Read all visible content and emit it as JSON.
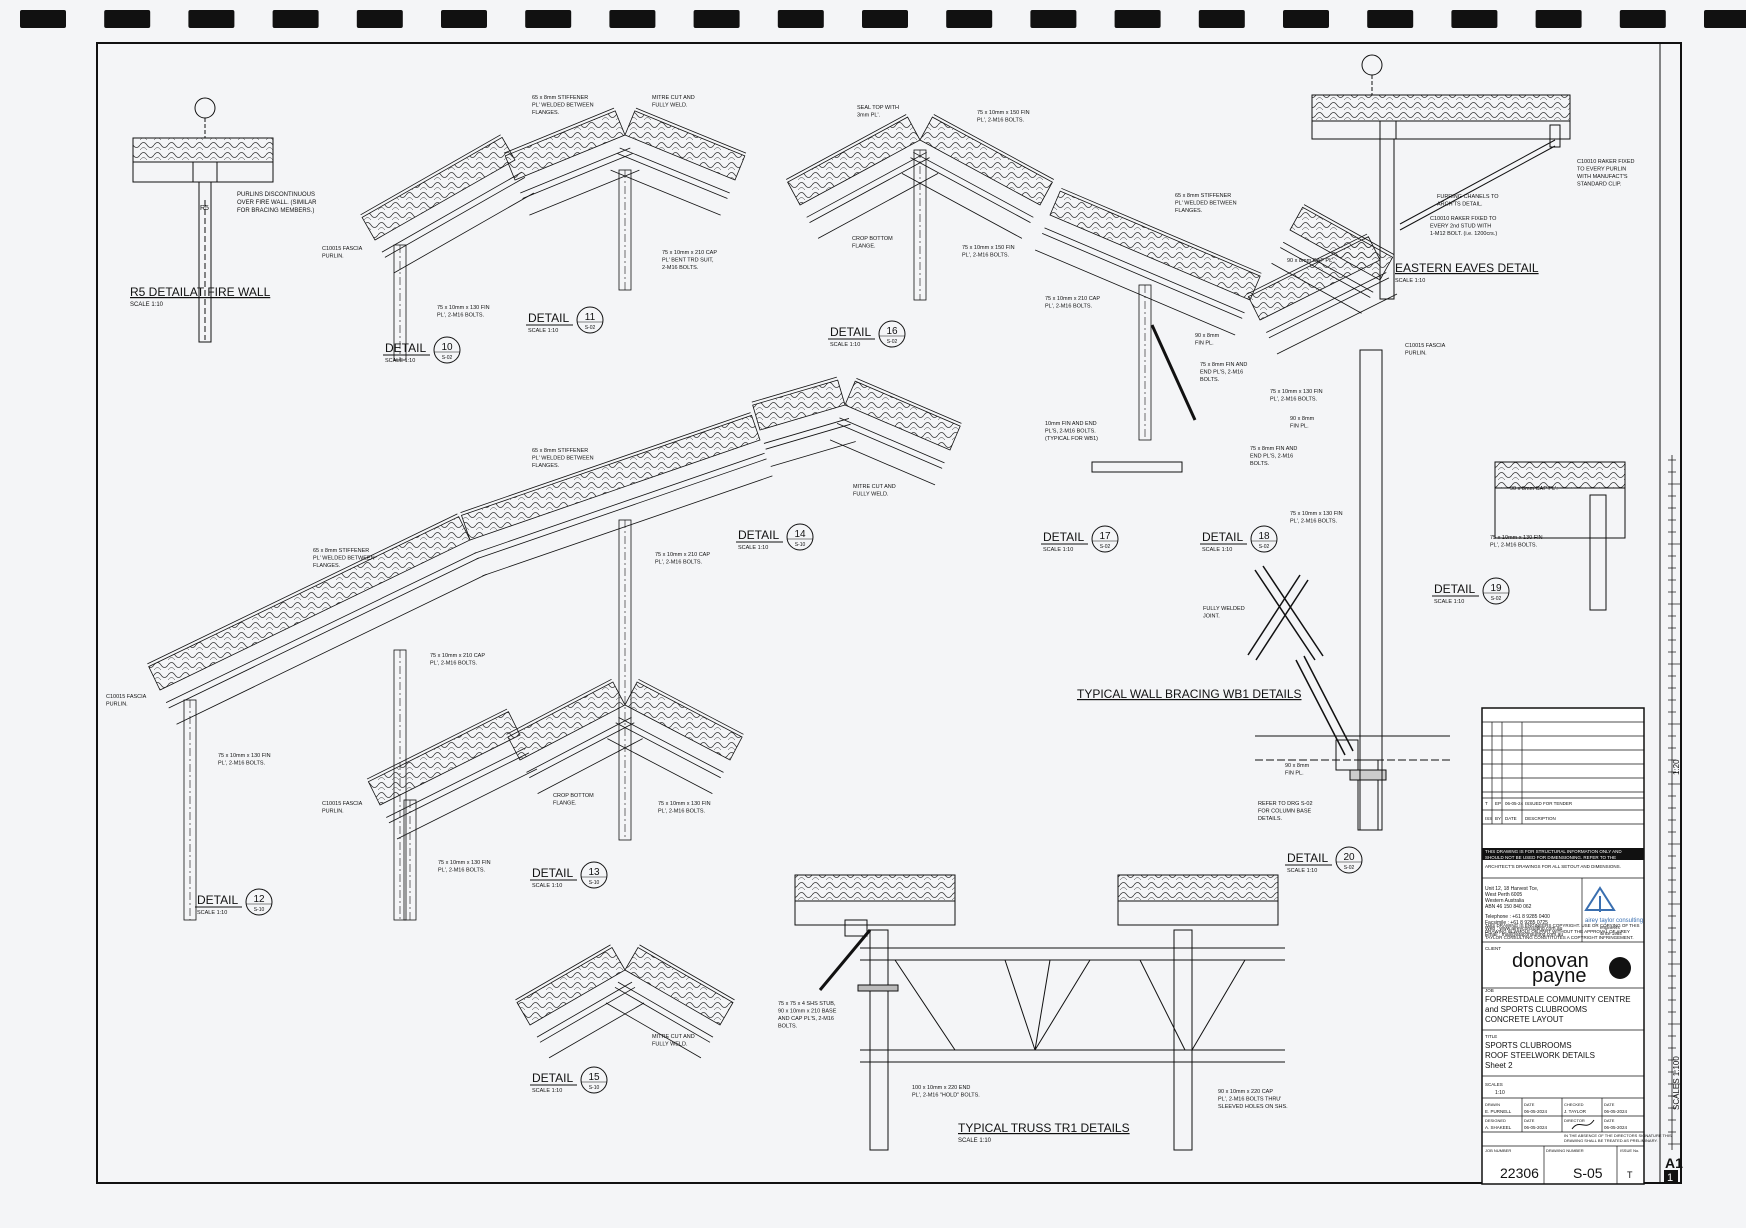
{
  "colors": {
    "paper": "#f4f5f7",
    "ink": "#1a1a1a",
    "logo_blue": "#3a6fb0"
  },
  "details": [
    {
      "title": "R5 DETAILAT FIRE WALL",
      "scale": "SCALE 1:10"
    },
    {
      "title": "DETAIL",
      "num": "10",
      "scale": "SCALE 1:10",
      "ref": "S-02"
    },
    {
      "title": "DETAIL",
      "num": "11",
      "scale": "SCALE 1:10",
      "ref": "S-02"
    },
    {
      "title": "DETAIL",
      "num": "16",
      "scale": "SCALE 1:10",
      "ref": "S-02"
    },
    {
      "title": "EASTERN EAVES DETAIL",
      "scale": "SCALE 1:10"
    },
    {
      "title": "DETAIL",
      "num": "14",
      "scale": "SCALE 1:10",
      "ref": "S-10"
    },
    {
      "title": "DETAIL",
      "num": "17",
      "scale": "SCALE 1:10",
      "ref": "S-02"
    },
    {
      "title": "DETAIL",
      "num": "18",
      "scale": "SCALE 1:10",
      "ref": "S-02"
    },
    {
      "title": "DETAIL",
      "num": "19",
      "scale": "SCALE 1:10",
      "ref": "S-02"
    },
    {
      "title": "TYPICAL WALL BRACING WB1 DETAILS",
      "scale": ""
    },
    {
      "title": "DETAIL",
      "num": "12",
      "scale": "SCALE 1:10",
      "ref": "S-10"
    },
    {
      "title": "DETAIL",
      "num": "13",
      "scale": "SCALE 1:10",
      "ref": "S-10"
    },
    {
      "title": "DETAIL",
      "num": "20",
      "scale": "SCALE 1:10",
      "ref": "S-02"
    },
    {
      "title": "DETAIL",
      "num": "15",
      "scale": "SCALE 1:10",
      "ref": "S-10"
    },
    {
      "title": "TYPICAL TRUSS TR1 DETAILS",
      "scale": "SCALE 1:10"
    }
  ],
  "notes": {
    "purlins_discontinuous": [
      "PURLINS DISCONTINUOUS",
      "OVER FIRE WALL. (SIMILAR",
      "FOR BRACING MEMBERS.)"
    ],
    "stiffener": [
      "65 x 8mm STIFFENER",
      "PL' WELDED BETWEEN",
      "FLANGES."
    ],
    "mitre": [
      "MITRE CUT AND",
      "FULLY WELD."
    ],
    "fascia": [
      "C10015 FASCIA",
      "PURLIN."
    ],
    "fin_130": [
      "75 x 10mm x 130 FIN",
      "PL', 2-M16 BOLTS."
    ],
    "cap_210_bent": [
      "75 x 10mm x 210 CAP",
      "PL' BENT TRD SUIT,",
      "2-M16 BOLTS."
    ],
    "seal_top": [
      "SEAL TOP WITH",
      "3mm PL'."
    ],
    "fin_150": [
      "75 x 10mm x 150 FIN",
      "PL', 2-M16 BOLTS."
    ],
    "crop_bottom": [
      "CROP BOTTOM",
      "FLANGE."
    ],
    "cap_210": [
      "75 x 10mm x 210 CAP",
      "PL', 2-M16 BOLTS."
    ],
    "fin_90": [
      "90 x 8mm",
      "FIN PL."
    ],
    "fin_end_8": [
      "75 x 8mm FIN AND",
      "END PL'S, 2-M16",
      "BOLTS."
    ],
    "fin_end_10": [
      "10mm FIN AND END",
      "PL'S, 2-M16 BOLTS.",
      "(TYPICAL FOR WB1)"
    ],
    "cap_90": "90 x 8mm CAP PL'.",
    "raker_fixed": [
      "C10010 RAKER FIXED",
      "TO EVERY PURLIN",
      "WITH MANUFACT'S",
      "STANDARD CLIP."
    ],
    "furring": [
      "FURRING CHANELS TO",
      "ARCH'TS DETAIL."
    ],
    "raker_every2": [
      "C10010 RAKER FIXED TO",
      "EVERY 2nd STUD WITH",
      "1-M12 BOLT. (i.e. 1200crs.)"
    ],
    "fully_welded": [
      "FULLY WELDED",
      "JOINT."
    ],
    "refer_base": [
      "REFER TO DRG S-02",
      "FOR COLUMN BASE",
      "DETAILS."
    ],
    "shs_stub": [
      "75 x 75 x 4 SHS STUB,",
      "90 x 10mm x 210 BASE",
      "AND CAP PL'S, 2-M16",
      "BOLTS."
    ],
    "end_220": [
      "100 x 10mm x 220 END",
      "PL', 2-M16 \"HOLD\" BOLTS."
    ],
    "cap_220": [
      "90 x 10mm x 220 CAP",
      "PL', 2-M16 BOLTS THRU'",
      "SLEEVED HOLES ON SHS."
    ]
  },
  "title_block": {
    "revision": {
      "rev": "T",
      "by": "EP",
      "date": "06-05-24",
      "desc": "ISSUED FOR TENDER"
    },
    "rev_headers": [
      "ISS",
      "BY",
      "DATE",
      "DESCRIPTION"
    ],
    "warning": [
      "THIS DRAWING IS FOR STRUCTURAL INFORMATION ONLY AND",
      "SHOULD NOT BE USED FOR DIMENSIONING. REFER TO THE",
      "ARCHITECT'S DRAWINGS FOR ALL SETOUT AND DIMENSIONS."
    ],
    "address": [
      "Unit 12, 18 Harvest Tce,",
      "West Perth   6005",
      "Western Australia",
      "ABN 46 150 840 062"
    ],
    "contact": [
      "Telephone : +61 8 9285 0400",
      "Facsimile : +61 8 9285 0725",
      "Web   : www.aireyconsulting.com.au",
      "Email : mail@ataconsulting.com.au"
    ],
    "consultant": "airey taylor consulting",
    "consultant_sub": [
      "engineers",
      "since 1984"
    ],
    "copyright": [
      "THIS DRAWING IS ENGINEERS COPYRIGHT. USE OR COPYING OF THIS",
      "DRAWING IN WHOLE OR PART WITHOUT THE APPROVAL OF AIREY",
      "TAYLOR CONSULTING CONSTITUTES A COPYRIGHT INFRINGEMENT."
    ],
    "client_label": "CLIENT",
    "client": [
      "donovan",
      "payne"
    ],
    "job_label": "JOB",
    "job": [
      "FORRESTDALE COMMUNITY CENTRE",
      "and SPORTS CLUBROOMS",
      "CONCRETE LAYOUT"
    ],
    "title_label": "TITLE",
    "title": [
      "SPORTS CLUBROOMS",
      "ROOF STEELWORK DETAILS",
      "Sheet 2"
    ],
    "scales_label": "SCALES",
    "scales": "1:10",
    "drawn": "E. PURNELL",
    "drawn_date": "06-05-2024",
    "checked": "J. TAYLOR",
    "checked_date": "06-05-2024",
    "designed": "A. SHAKEEL",
    "designed_date": "06-05-2024",
    "approved_date": "06-05-2024",
    "labels": {
      "drawn": "DRAWN",
      "date": "DATE",
      "checked": "CHECKED",
      "designed": "DESIGNED",
      "director": "DIRECTOR",
      "job_number": "JOB NUMBER",
      "drawing_number": "DRAWING NUMBER",
      "issue": "ISSUE No."
    },
    "note_abs": [
      "IN THE ABSENCE OF THE DIRECTORS SIGNATURE THIS",
      "DRAWING SHALL BE TREATED AS PRELIMINARY."
    ],
    "job_number": "22306",
    "drawing_number": "S-05",
    "issue": "T",
    "size": "A1",
    "size_num": "1"
  },
  "side_scale": {
    "label_top": "SCALES 1:100",
    "label_mid": "1:20"
  }
}
